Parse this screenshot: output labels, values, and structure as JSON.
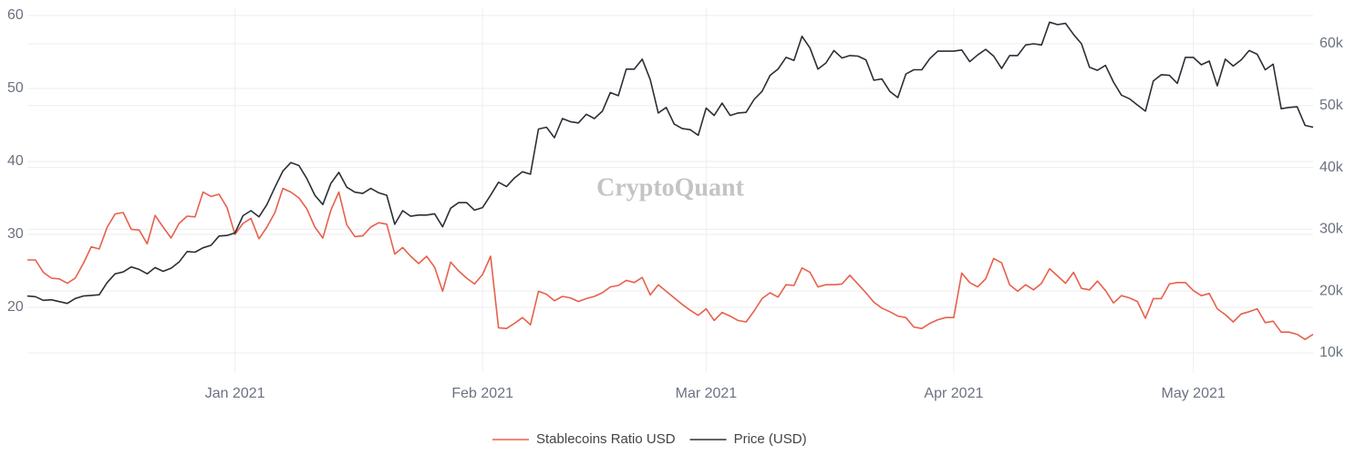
{
  "chart_data": {
    "type": "line",
    "watermark": "CryptoQuant",
    "categories": [
      null,
      null,
      null,
      null,
      null,
      null,
      null,
      null,
      null,
      null,
      null,
      null,
      null,
      null,
      null,
      null,
      null,
      null,
      null,
      null,
      null,
      null,
      null,
      null,
      null,
      null,
      "Jan 2021",
      null,
      null,
      null,
      null,
      null,
      null,
      null,
      null,
      null,
      null,
      null,
      null,
      null,
      null,
      null,
      null,
      null,
      null,
      null,
      null,
      null,
      null,
      null,
      null,
      null,
      null,
      null,
      null,
      null,
      null,
      "Feb 2021",
      null,
      null,
      null,
      null,
      null,
      null,
      null,
      null,
      null,
      null,
      null,
      null,
      null,
      null,
      null,
      null,
      null,
      null,
      null,
      null,
      null,
      null,
      null,
      null,
      null,
      null,
      null,
      "Mar 2021",
      null,
      null,
      null,
      null,
      null,
      null,
      null,
      null,
      null,
      null,
      null,
      null,
      null,
      null,
      null,
      null,
      null,
      null,
      null,
      null,
      null,
      null,
      null,
      null,
      null,
      null,
      null,
      null,
      null,
      null,
      "Apr 2021",
      null,
      null,
      null,
      null,
      null,
      null,
      null,
      null,
      null,
      null,
      null,
      null,
      null,
      null,
      null,
      null,
      null,
      null,
      null,
      null,
      null,
      null,
      null,
      null,
      null,
      null,
      null,
      null,
      null,
      "May 2021",
      null,
      null,
      null,
      null,
      null,
      null,
      null,
      null,
      null,
      null,
      null,
      null,
      null,
      null,
      null
    ],
    "series": [
      {
        "name": "Stablecoins Ratio USD",
        "color": "#e8604c",
        "axis": "y",
        "values": [
          26.5,
          26.5,
          24.8,
          24,
          23.9,
          23.3,
          24,
          26,
          28.3,
          28,
          31,
          32.8,
          33,
          30.7,
          30.6,
          28.7,
          32.6,
          31,
          29.5,
          31.5,
          32.5,
          32.4,
          35.8,
          35.2,
          35.5,
          33.7,
          30,
          31.5,
          32.2,
          29.4,
          31,
          33,
          36.3,
          35.8,
          35,
          33.5,
          31,
          29.5,
          33.3,
          35.8,
          31.3,
          29.7,
          29.8,
          31,
          31.6,
          31.4,
          27.3,
          28.2,
          27,
          26,
          27,
          25.5,
          22.2,
          26.2,
          25,
          24,
          23.2,
          24.5,
          27,
          17.2,
          17.1,
          17.8,
          18.6,
          17.6,
          22.2,
          21.8,
          20.9,
          21.5,
          21.3,
          20.8,
          21.2,
          21.5,
          22,
          22.8,
          23,
          23.7,
          23.4,
          24.1,
          21.7,
          23.1,
          22.2,
          21.3,
          20.4,
          19.6,
          18.9,
          19.8,
          18.2,
          19.3,
          18.8,
          18.2,
          18,
          19.5,
          21.2,
          22,
          21.4,
          23.1,
          23,
          25.4,
          24.8,
          22.8,
          23.1,
          23.1,
          23.2,
          24.4,
          23.2,
          22,
          20.7,
          19.9,
          19.4,
          18.8,
          18.6,
          17.3,
          17.1,
          17.8,
          18.3,
          18.6,
          18.6,
          24.7,
          23.4,
          22.8,
          23.9,
          26.7,
          26.1,
          23.1,
          22.2,
          23.1,
          22.4,
          23.3,
          25.3,
          24.3,
          23.3,
          24.8,
          22.6,
          22.4,
          23.6,
          22.3,
          20.6,
          21.6,
          21.3,
          20.8,
          18.5,
          21.2,
          21.2,
          23.2,
          23.4,
          23.4,
          22.3,
          21.6,
          21.9,
          19.8,
          19,
          18,
          19.1,
          19.4,
          19.8,
          17.9,
          18.1,
          16.6,
          16.6,
          16.3,
          15.6,
          16.3
        ]
      },
      {
        "name": "Price (USD)",
        "color": "#2b2f36",
        "axis": "y2",
        "values": [
          19200,
          19100,
          18500,
          18600,
          18300,
          18000,
          18800,
          19200,
          19300,
          19400,
          21400,
          22800,
          23100,
          23900,
          23500,
          22800,
          23800,
          23200,
          23700,
          24700,
          26400,
          26300,
          27000,
          27400,
          28900,
          29000,
          29400,
          32200,
          33000,
          32000,
          34000,
          36800,
          39400,
          40800,
          40300,
          38200,
          35500,
          34000,
          37400,
          39200,
          36800,
          36000,
          35800,
          36600,
          35900,
          35500,
          30800,
          33000,
          32100,
          32300,
          32300,
          32500,
          30400,
          33400,
          34300,
          34300,
          33100,
          33500,
          35500,
          37600,
          36900,
          38300,
          39300,
          38900,
          46200,
          46500,
          44800,
          47900,
          47400,
          47200,
          48600,
          47900,
          49100,
          52100,
          51600,
          55900,
          55900,
          57500,
          54200,
          48800,
          49700,
          47000,
          46300,
          46100,
          45200,
          49600,
          48400,
          50400,
          48400,
          48800,
          48900,
          51000,
          52300,
          54900,
          55900,
          57800,
          57300,
          61200,
          59300,
          55900,
          56900,
          58900,
          57700,
          58100,
          58000,
          57400,
          54100,
          54300,
          52300,
          51300,
          55100,
          55800,
          55800,
          57600,
          58800,
          58800,
          58800,
          59000,
          57100,
          58200,
          59100,
          58000,
          56000,
          58100,
          58100,
          59800,
          60000,
          59800,
          63500,
          63100,
          63300,
          61500,
          60000,
          56200,
          55700,
          56500,
          53800,
          51700,
          51100,
          50100,
          49100,
          54000,
          55000,
          54900,
          53600,
          57800,
          57800,
          56600,
          57200,
          53200,
          57500,
          56400,
          57400,
          58900,
          58300,
          55800,
          56700,
          49500,
          49700,
          49800,
          46800,
          46500
        ]
      }
    ],
    "ylim": [
      11,
      61
    ],
    "yticks": [
      20,
      30,
      40,
      50,
      60
    ],
    "y2lim": [
      6750,
      65750
    ],
    "y2ticks": [
      {
        "value": 10000,
        "label": "10k"
      },
      {
        "value": 20000,
        "label": "20k"
      },
      {
        "value": 30000,
        "label": "30k"
      },
      {
        "value": 40000,
        "label": "40k"
      },
      {
        "value": 50000,
        "label": "50k"
      },
      {
        "value": 60000,
        "label": "60k"
      }
    ],
    "grid": true,
    "legend": "bottom"
  }
}
